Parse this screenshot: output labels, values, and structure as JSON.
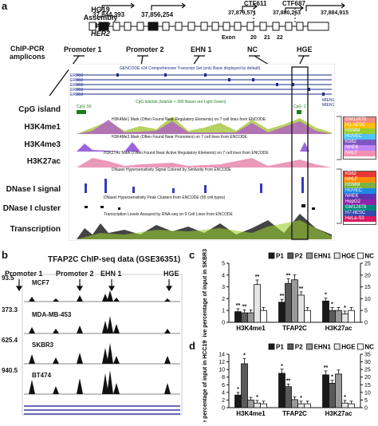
{
  "panels": [
    "a",
    "b",
    "c",
    "d"
  ],
  "genome": {
    "assembly_lines": [
      "HG19",
      "Assembly",
      "Chr17",
      "HER2"
    ],
    "coords_left": [
      "37,844,393",
      "37,856,254"
    ],
    "coords_right": [
      "37,879,571",
      "37,880,263",
      "37,884,915"
    ],
    "ctf_labels": [
      "CTF611",
      "CTF687"
    ],
    "exon_label": "Exon",
    "exon_numbers": [
      "20",
      "21",
      "22"
    ]
  },
  "amplicons": {
    "title_lines": [
      "ChIP-PCR",
      "amplicons"
    ],
    "labels": [
      "Promoter 1",
      "Promoter 2",
      "EHN 1",
      "NC",
      "HGE"
    ]
  },
  "browser": {
    "header": "GENCODE v24 Comprehensive Transcript Set (only Basic displayed by default)",
    "isoforms": [
      "ERBB2",
      "ERBB2",
      "ERBB2",
      "ERBB2",
      "ERBB2"
    ],
    "cpg_header": "CpG Islands (Islands < 300 Bases are Light Green)",
    "cpg_values": [
      "CpG: 56",
      "CpG: 2"
    ],
    "h3k4me1_header": "H3K4Me1 Mark (Often Found Near Regulatory Elements) on 7 cell lines from ENCODE",
    "h3k4me3_header": "H3K4Me3 Mark (Often Found Near Promoters) on 7 cell lines from ENCODE",
    "h3k27ac_header": "H3K27Ac Mark (Often Found Near Active Regulatory Elements) on 7 cell lines from ENCODE",
    "dnase_signal_header": "DNaseI Hypersensitivity Signal Colored by Similarity from ENCODE",
    "dnase_cluster_header": "DNaseI Hypersensitivity Peak Clusters from ENCODE (95 cell types)",
    "transcription_header": "Transcription Levels Assayed by RNA-seq on 9 Cell Lines from ENCODE",
    "right_labels": [
      "MIEN1",
      "MIEN1"
    ]
  },
  "tracks": [
    "CpG island",
    "H3K4me1",
    "H3K4me3",
    "H3K27ac",
    "DNase I signal",
    "DNase I cluster",
    "Transcription"
  ],
  "legend_histone": [
    {
      "name": "GM12878",
      "color": "#f28b82"
    },
    {
      "name": "H1-hESC",
      "color": "#fbbc04"
    },
    {
      "name": "HSMM",
      "color": "#9acd32"
    },
    {
      "name": "HUVEC",
      "color": "#4fc3f7"
    },
    {
      "name": "K562",
      "color": "#7e57c2"
    },
    {
      "name": "NHEK",
      "color": "#c084fc"
    },
    {
      "name": "NHLF",
      "color": "#f48fb1"
    }
  ],
  "legend_dnase": [
    {
      "name": "K562",
      "color": "#e53935"
    },
    {
      "name": "NHLF",
      "color": "#fb8c00"
    },
    {
      "name": "HSMM",
      "color": "#7cb342"
    },
    {
      "name": "HUVEC",
      "color": "#1e88e5"
    },
    {
      "name": "NHEK",
      "color": "#5e35b1"
    },
    {
      "name": "HepG2",
      "color": "#8e24aa"
    },
    {
      "name": "GM12878",
      "color": "#00897b"
    },
    {
      "name": "H7-hESC",
      "color": "#3949ab"
    },
    {
      "name": "HeLa-S3",
      "color": "#d81b60"
    }
  ],
  "panel_b": {
    "title": "TFAP2C ChIP-seq data (GSE36351)",
    "region_labels": [
      "Promoter 1",
      "Promoter 2",
      "EHN 1",
      "HGE"
    ],
    "tracks": [
      {
        "value": "93.5",
        "cell": "MCF7"
      },
      {
        "value": "373.3",
        "cell": "MDA-MB-453"
      },
      {
        "value": "625.4",
        "cell": "SKBR3"
      },
      {
        "value": "940.5",
        "cell": "BT474"
      }
    ]
  },
  "chart_data": [
    {
      "type": "bar",
      "panel": "c",
      "ylabel": "Relative percentage of input in SKBR3 cell",
      "categories": [
        "H3K4me1",
        "TFAP2C",
        "H3K27ac"
      ],
      "ylim": [
        0,
        5
      ],
      "yticks_left": [
        "0",
        "1",
        "2",
        "3",
        "4",
        "5"
      ],
      "yticks_right": [
        "0",
        "5",
        "10",
        "15",
        "20",
        "25"
      ],
      "legend": [
        "P1",
        "P2",
        "EHN1",
        "HGE",
        "NC"
      ],
      "series": [
        {
          "name": "P1",
          "color": "#1a1a1a",
          "values": [
            0.9,
            1.7,
            1.8
          ]
        },
        {
          "name": "P2",
          "color": "#5a5a5a",
          "values": [
            0.8,
            3.3,
            1.0
          ]
        },
        {
          "name": "EHN1",
          "color": "#9a9a9a",
          "values": [
            0.8,
            3.6,
            1.0
          ]
        },
        {
          "name": "HGE",
          "color": "#e6e6e6",
          "values": [
            3.2,
            2.3,
            0.7
          ]
        },
        {
          "name": "NC",
          "color": "#ffffff",
          "values": [
            1.0,
            1.0,
            1.0
          ]
        }
      ],
      "annotations": [
        "**",
        "**",
        "**",
        "**",
        "**",
        "**",
        "*",
        "*",
        "*"
      ]
    },
    {
      "type": "bar",
      "panel": "d",
      "ylabel": "Relative percentage of input in HCC1954 cell",
      "categories": [
        "H3K4me1",
        "TFAP2C",
        "H3K27ac"
      ],
      "ylim": [
        0,
        14
      ],
      "yticks_left": [
        "0",
        "2",
        "4",
        "6",
        "8",
        "10",
        "12",
        "14"
      ],
      "yticks_right": [
        "0",
        "5",
        "10",
        "15",
        "20",
        "25",
        "30",
        "35"
      ],
      "legend": [
        "P1",
        "P2",
        "EHN1",
        "HGE",
        "NC"
      ],
      "series": [
        {
          "name": "P1",
          "color": "#1a1a1a",
          "values": [
            3.3,
            9.0,
            8.6
          ]
        },
        {
          "name": "P2",
          "color": "#5a5a5a",
          "values": [
            11.5,
            5.5,
            6.4
          ]
        },
        {
          "name": "EHN1",
          "color": "#9a9a9a",
          "values": [
            2.0,
            2.1,
            8.8
          ]
        },
        {
          "name": "HGE",
          "color": "#e6e6e6",
          "values": [
            1.2,
            1.0,
            1.2
          ]
        },
        {
          "name": "NC",
          "color": "#ffffff",
          "values": [
            1.0,
            1.0,
            1.0
          ]
        }
      ],
      "annotations": [
        "*",
        "*",
        "*",
        "*",
        "**",
        "*",
        "**",
        "*",
        "*"
      ]
    }
  ]
}
